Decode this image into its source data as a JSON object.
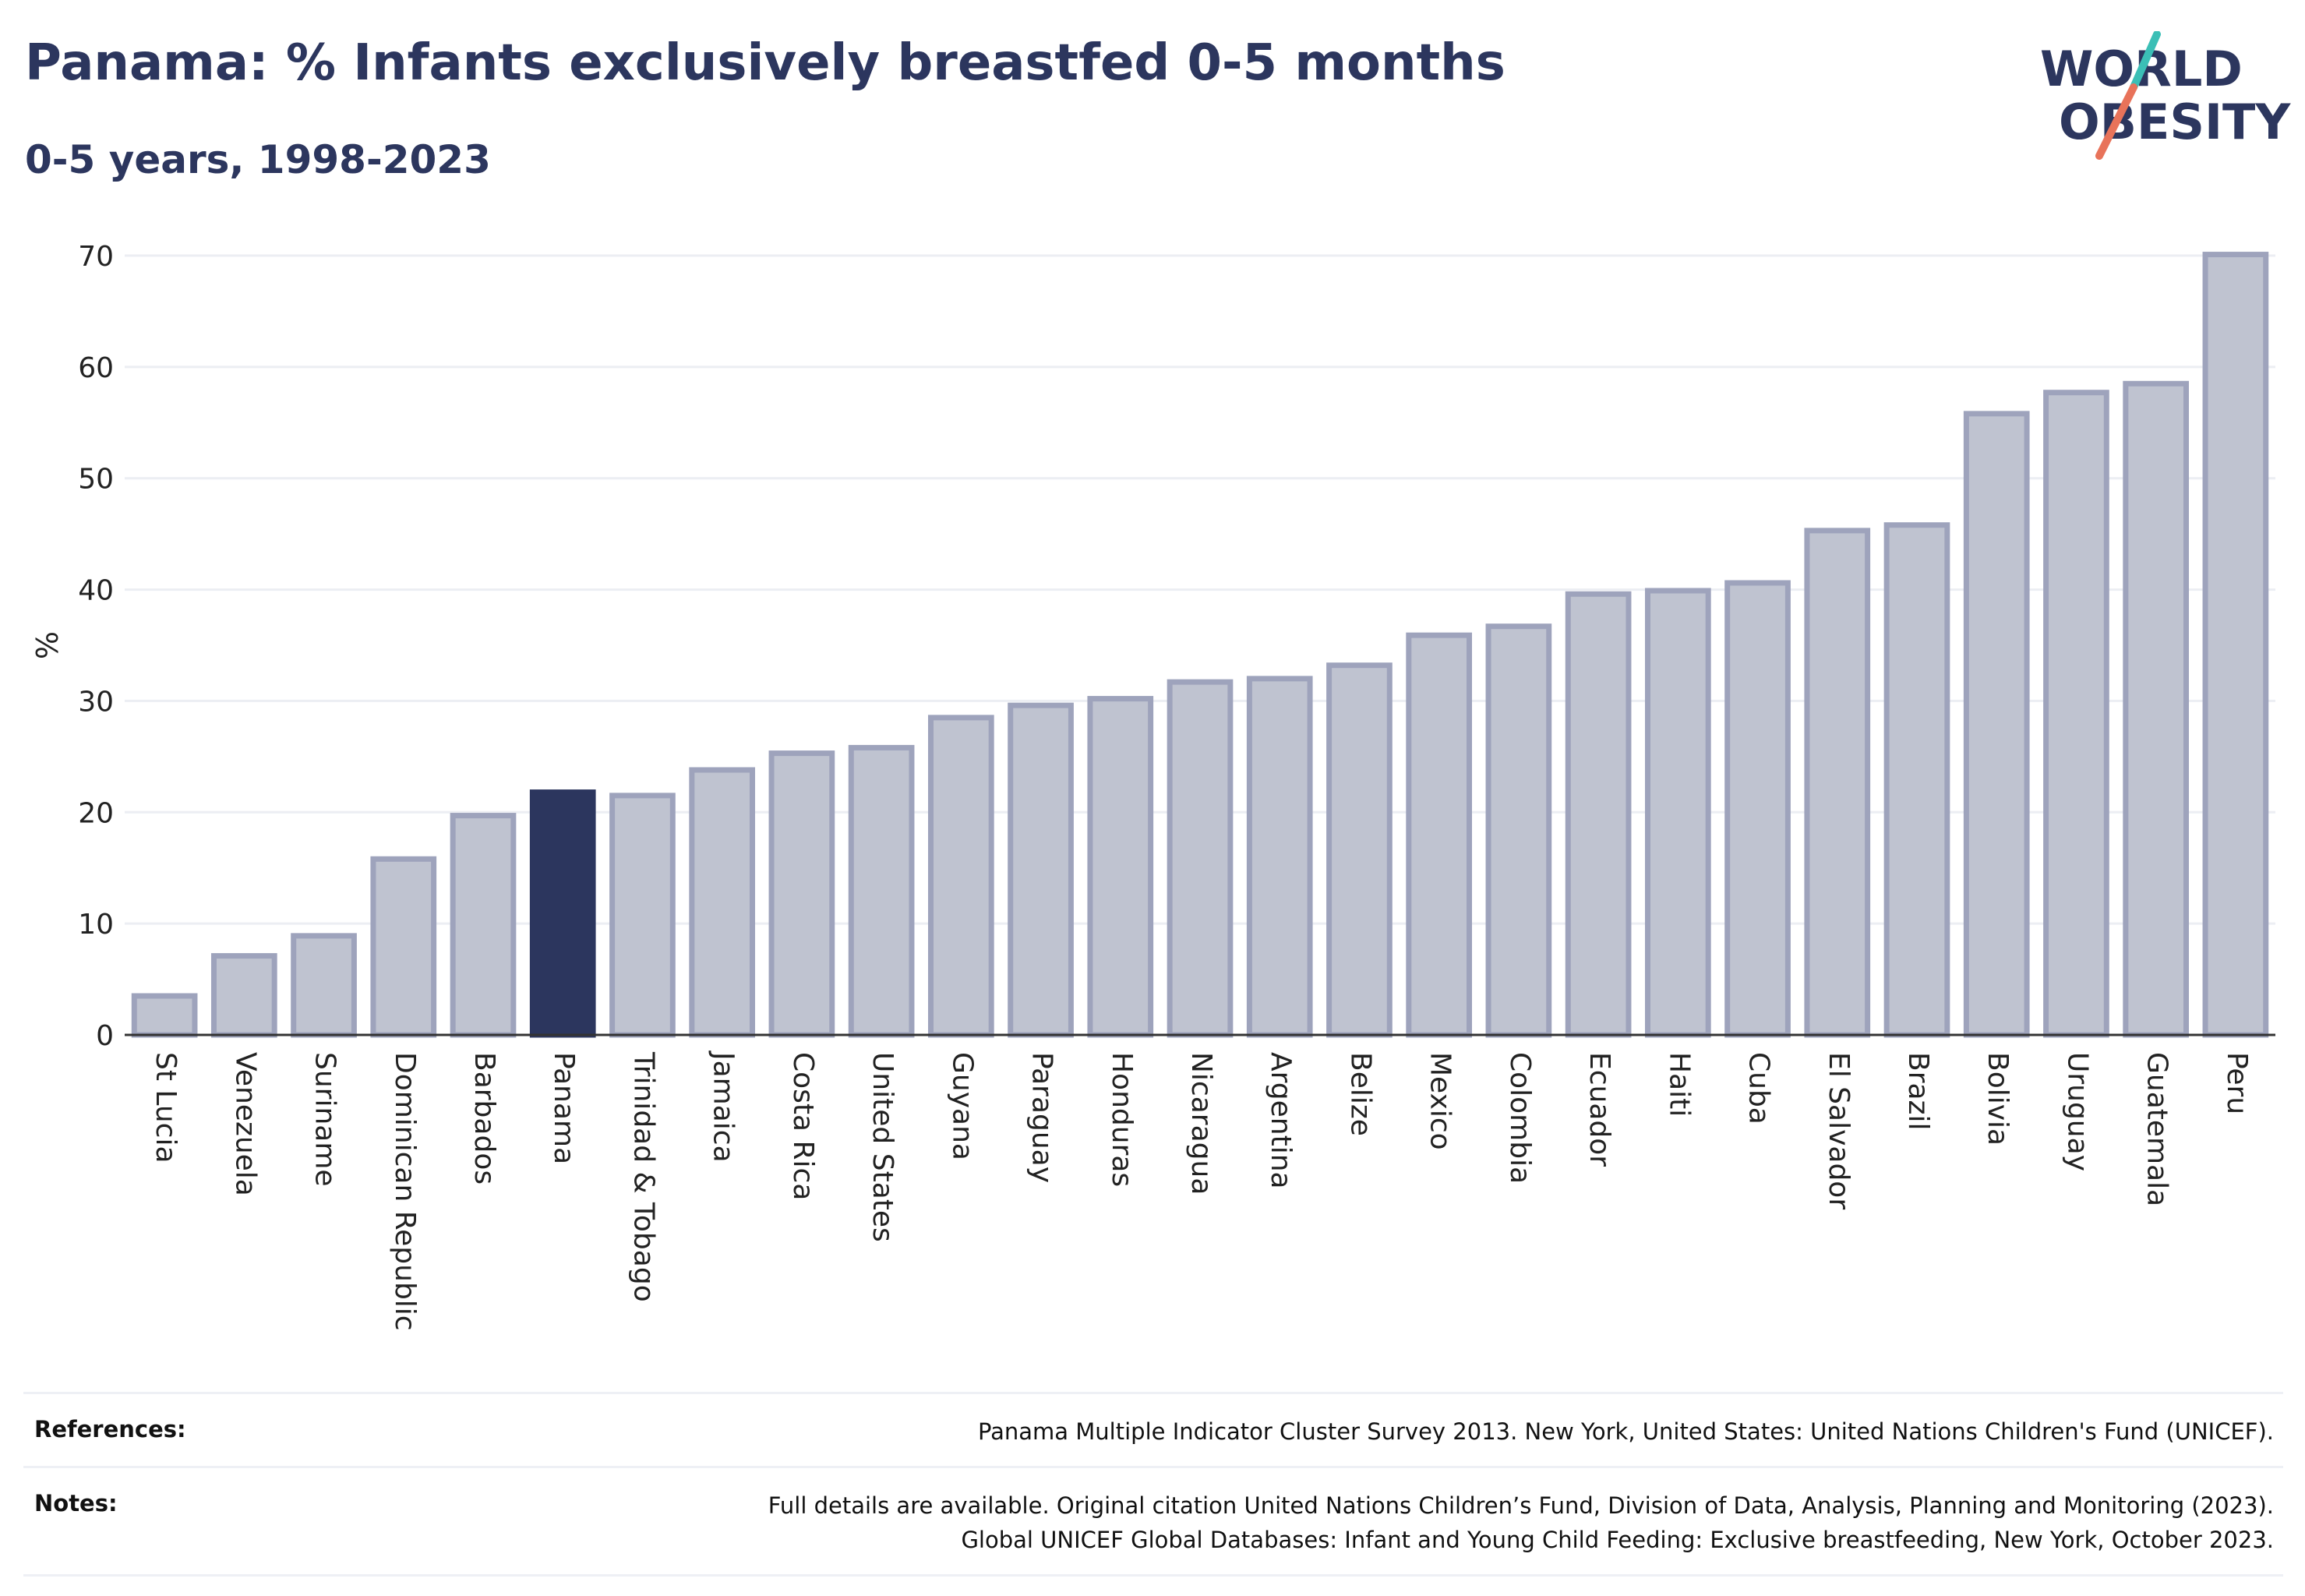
{
  "header": {
    "title": "Panama: % Infants exclusively breastfed 0-5 months",
    "subtitle": "0-5 years, 1998-2023"
  },
  "logo": {
    "line1": "WORLD",
    "line2": "OBESITY",
    "text_color": "#2c365e",
    "accent_teal": "#3bbfb6",
    "accent_coral": "#e8735a"
  },
  "chart_data": {
    "type": "bar",
    "ylabel": "%",
    "xlabel": "",
    "ylim": [
      0,
      70
    ],
    "yticks": [
      0,
      10,
      20,
      30,
      40,
      50,
      60,
      70
    ],
    "grid": true,
    "highlight": "Panama",
    "colors": {
      "bar_fill": "#bfc3d0",
      "bar_stroke": "#9ea3bc",
      "highlight_fill": "#2c365e",
      "grid": "#eceef3",
      "axis": "#333333"
    },
    "categories": [
      "St Lucia",
      "Venezuela",
      "Suriname",
      "Dominican Republic",
      "Barbados",
      "Panama",
      "Trinidad & Tobago",
      "Jamaica",
      "Costa Rica",
      "United States",
      "Guyana",
      "Paraguay",
      "Honduras",
      "Nicaragua",
      "Argentina",
      "Belize",
      "Mexico",
      "Colombia",
      "Ecuador",
      "Haiti",
      "Cuba",
      "El Salvador",
      "Brazil",
      "Bolivia",
      "Uruguay",
      "Guatemala",
      "Peru"
    ],
    "values": [
      3.5,
      7.1,
      8.9,
      15.8,
      19.7,
      21.8,
      21.5,
      23.8,
      25.3,
      25.8,
      28.5,
      29.6,
      30.2,
      31.7,
      32.0,
      33.2,
      35.9,
      36.7,
      39.6,
      39.9,
      40.6,
      45.3,
      45.8,
      55.8,
      57.7,
      58.5,
      70.1
    ]
  },
  "references": {
    "label": "References:",
    "text": "Panama Multiple Indicator Cluster Survey 2013. New York, United States: United Nations Children's Fund (UNICEF)."
  },
  "notes": {
    "label": "Notes:",
    "line1": "Full details are available. Original citation United Nations Children’s Fund, Division of Data, Analysis, Planning and Monitoring (2023).",
    "line2": "Global UNICEF Global Databases: Infant and Young Child Feeding: Exclusive breastfeeding, New York, October 2023."
  }
}
